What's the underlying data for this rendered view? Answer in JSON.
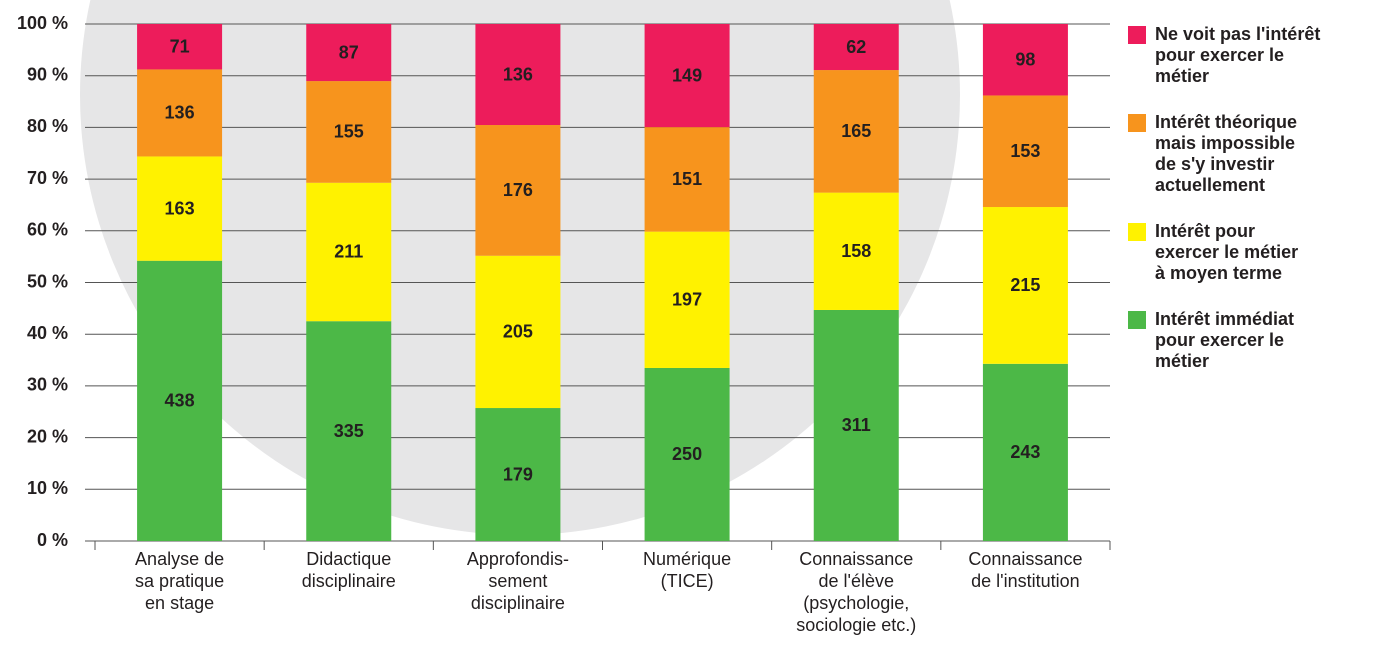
{
  "chart_data": {
    "type": "bar",
    "stacked": "percent",
    "categories": [
      "Analyse de\nsa pratique\nen stage",
      "Didactique\ndisciplinaire",
      "Approfondis-\nsement\ndisciplinaire",
      "Numérique\n(TICE)",
      "Connaissance\nde l'élève\n(psychologie,\nsociologie etc.)",
      "Connaissance\nde l'institution"
    ],
    "series": [
      {
        "name": "Intérêt immédiat\npour exercer le\nmétier",
        "color": "#4cb847",
        "values": [
          438,
          335,
          179,
          250,
          311,
          243
        ]
      },
      {
        "name": "Intérêt pour\nexercer le métier\nà moyen terme",
        "color": "#fff200",
        "values": [
          163,
          211,
          205,
          197,
          158,
          215
        ]
      },
      {
        "name": "Intérêt théorique\nmais impossible\nde s'y investir\nactuellement",
        "color": "#f7941d",
        "values": [
          136,
          155,
          176,
          151,
          165,
          153
        ]
      },
      {
        "name": "Ne voit pas l'intérêt\npour exercer le\nmétier",
        "color": "#ed1c5b",
        "values": [
          71,
          87,
          136,
          149,
          62,
          98
        ]
      }
    ],
    "ylim": [
      0,
      100
    ],
    "yticks": [
      {
        "value": 0,
        "label": "0 %"
      },
      {
        "value": 10,
        "label": "10 %"
      },
      {
        "value": 20,
        "label": "20 %"
      },
      {
        "value": 30,
        "label": "30 %"
      },
      {
        "value": 40,
        "label": "40 %"
      },
      {
        "value": 50,
        "label": "50 %"
      },
      {
        "value": 60,
        "label": "60 %"
      },
      {
        "value": 70,
        "label": "70 %"
      },
      {
        "value": 80,
        "label": "80 %"
      },
      {
        "value": 90,
        "label": "90 %"
      },
      {
        "value": 100,
        "label": "100 %"
      }
    ],
    "grid": true,
    "legend": "right"
  }
}
